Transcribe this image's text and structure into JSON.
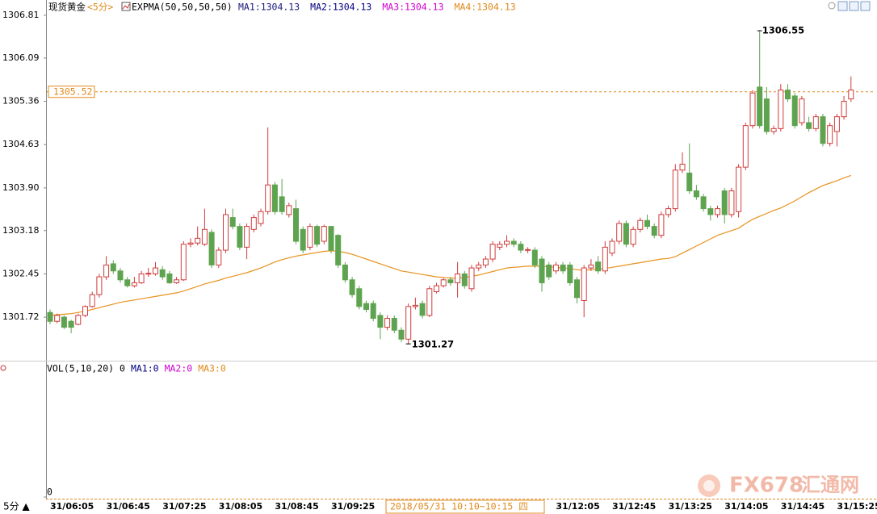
{
  "chart_data": {
    "type": "candlestick",
    "title": "现货黄金",
    "period": "<5分>",
    "indicator": "EXPMA(50,50,50,50)",
    "ma_labels": [
      {
        "text": "MA1:1304.13",
        "color": "#1a1a80"
      },
      {
        "text": "MA2:1304.13",
        "color": "#000080"
      },
      {
        "text": "MA3:1304.13",
        "color": "#d000d0"
      },
      {
        "text": "MA4:1304.13",
        "color": "#e08a1e"
      }
    ],
    "ylim": [
      1301.0,
      1307.0
    ],
    "yticks": [
      1306.81,
      1306.09,
      1305.36,
      1304.63,
      {
        "value": 1303.9,
        "label": "1303.90"
      },
      1303.18,
      1302.45,
      1301.72
    ],
    "up_color": "#d03c3c",
    "down_color": "#5ea34f",
    "categories": [
      "31/06:05",
      null,
      null,
      null,
      null,
      null,
      null,
      null,
      "31/06:45",
      null,
      null,
      null,
      null,
      null,
      null,
      null,
      "31/07:25",
      null,
      null,
      null,
      null,
      null,
      null,
      null,
      "31/08:05",
      null,
      null,
      null,
      null,
      null,
      null,
      null,
      "31/08:45",
      null,
      null,
      null,
      null,
      null,
      null,
      null,
      "31/09:25",
      null,
      null,
      null,
      null,
      null,
      null,
      null,
      null,
      null,
      null,
      null,
      null,
      null,
      null,
      null,
      null,
      null,
      null,
      null,
      null,
      null,
      null,
      null,
      null,
      null,
      null,
      null,
      null,
      null,
      null,
      null,
      "31/12:05",
      null,
      null,
      null,
      null,
      null,
      null,
      null,
      "31/12:45",
      null,
      null,
      null,
      null,
      null,
      null,
      null,
      "31/13:25",
      null,
      null,
      null,
      null,
      null,
      null,
      null,
      "31/14:05",
      null,
      null,
      null,
      null,
      null,
      null,
      null,
      "31/14:45",
      null,
      null,
      null,
      null,
      null,
      null,
      null,
      "31/15:25",
      null,
      null
    ],
    "open": [
      1301.8,
      1301.65,
      1301.72,
      1301.65,
      1301.6,
      1301.75,
      1301.9,
      1302.1,
      1302.4,
      1302.62,
      1302.5,
      1302.35,
      1302.25,
      1302.3,
      1302.45,
      1302.45,
      1302.52,
      1302.45,
      1302.3,
      1302.35,
      1302.95,
      1302.97,
      1302.95,
      1303.15,
      1302.6,
      1302.85,
      1303.4,
      1303.25,
      1302.9,
      1303.2,
      1303.3,
      1303.5,
      1303.95,
      1303.75,
      1303.45,
      1303.55,
      1303.2,
      1302.9,
      1303.25,
      1303.0,
      1303.25,
      1303.1,
      1302.6,
      1302.35,
      1302.2,
      1301.95,
      1301.95,
      1301.75,
      1301.55,
      1301.7,
      1301.5,
      1301.35,
      1301.9,
      1301.95,
      1301.75,
      1302.15,
      1302.25,
      1302.35,
      1302.3,
      1302.45,
      1302.2,
      1302.55,
      1302.6,
      1302.7,
      1302.9,
      1302.95,
      1303.0,
      1302.95,
      1302.85,
      1302.85,
      1302.7,
      1302.6,
      1302.5,
      1302.6,
      1302.6,
      1302.35,
      1302.0,
      1302.55,
      1302.65,
      1302.5,
      1302.8,
      1303.0,
      1303.3,
      1302.95,
      1303.2,
      1303.35,
      1303.25,
      1303.1,
      1303.45,
      1303.55,
      1304.2,
      1304.15,
      1303.85,
      1303.75,
      1303.55,
      1303.45,
      1303.85,
      1303.45,
      1303.5,
      1304.25,
      1304.95,
      1305.6,
      1305.4,
      1304.85,
      1304.9,
      1305.55,
      1305.45,
      1305.0,
      1305.0,
      1304.9,
      1305.1,
      1304.65,
      1304.85,
      1305.1,
      1305.4
    ],
    "high": [
      1301.85,
      1301.78,
      1301.75,
      1301.68,
      1301.78,
      1301.92,
      1302.15,
      1302.45,
      1302.75,
      1302.68,
      1302.55,
      1302.4,
      1302.4,
      1302.5,
      1302.55,
      1302.65,
      1302.58,
      1302.5,
      1302.4,
      1303.0,
      1303.05,
      1303.25,
      1303.55,
      1303.2,
      1302.9,
      1303.55,
      1303.55,
      1303.3,
      1303.3,
      1303.45,
      1303.55,
      1304.92,
      1304.0,
      1304.05,
      1303.65,
      1303.7,
      1303.25,
      1303.3,
      1303.28,
      1303.28,
      1303.25,
      1303.12,
      1302.65,
      1302.4,
      1302.25,
      1302.0,
      1302.0,
      1301.8,
      1301.75,
      1301.75,
      1301.55,
      1301.95,
      1302.05,
      1302.0,
      1302.25,
      1302.3,
      1302.38,
      1302.4,
      1302.65,
      1302.5,
      1302.6,
      1302.65,
      1302.75,
      1303.0,
      1303.0,
      1303.1,
      1303.05,
      1303.0,
      1302.9,
      1302.9,
      1302.75,
      1302.65,
      1302.65,
      1302.65,
      1302.65,
      1302.4,
      1302.6,
      1302.7,
      1302.75,
      1303.0,
      1303.05,
      1303.35,
      1303.35,
      1303.25,
      1303.4,
      1303.45,
      1303.3,
      1303.5,
      1303.6,
      1304.3,
      1304.5,
      1304.65,
      1303.95,
      1303.8,
      1303.6,
      1303.6,
      1303.9,
      1303.9,
      1304.3,
      1305.0,
      1305.55,
      1306.55,
      1305.6,
      1304.95,
      1305.65,
      1305.65,
      1305.5,
      1305.45,
      1305.1,
      1305.15,
      1305.15,
      1305.0,
      1305.15,
      1305.45,
      1305.78
    ],
    "low": [
      1301.6,
      1301.62,
      1301.52,
      1301.45,
      1301.58,
      1301.72,
      1301.88,
      1302.05,
      1302.35,
      1302.45,
      1302.3,
      1302.22,
      1302.22,
      1302.28,
      1302.4,
      1302.42,
      1302.35,
      1302.28,
      1302.28,
      1302.33,
      1302.9,
      1302.93,
      1302.92,
      1302.55,
      1302.55,
      1302.8,
      1303.2,
      1302.85,
      1302.7,
      1303.15,
      1303.25,
      1303.45,
      1303.45,
      1303.45,
      1303.4,
      1302.95,
      1302.8,
      1302.85,
      1302.9,
      1302.95,
      1302.8,
      1302.55,
      1302.3,
      1302.05,
      1301.85,
      1301.8,
      1301.65,
      1301.35,
      1301.5,
      1301.45,
      1301.3,
      1301.27,
      1301.85,
      1301.7,
      1301.72,
      1302.12,
      1302.22,
      1302.25,
      1302.05,
      1302.2,
      1302.15,
      1302.5,
      1302.55,
      1302.65,
      1302.85,
      1302.9,
      1302.9,
      1302.8,
      1302.8,
      1302.55,
      1302.15,
      1302.35,
      1302.45,
      1302.45,
      1302.25,
      1301.95,
      1301.72,
      1302.5,
      1302.45,
      1302.45,
      1302.75,
      1302.95,
      1302.9,
      1302.9,
      1303.15,
      1303.2,
      1303.05,
      1303.05,
      1303.4,
      1303.5,
      1304.15,
      1303.8,
      1303.7,
      1303.5,
      1303.35,
      1303.4,
      1303.3,
      1303.4,
      1303.4,
      1304.2,
      1304.9,
      1304.9,
      1304.8,
      1304.8,
      1304.85,
      1305.35,
      1304.9,
      1304.95,
      1304.85,
      1304.85,
      1304.6,
      1304.6,
      1304.6,
      1305.05,
      1305.35
    ],
    "close": [
      1301.65,
      1301.75,
      1301.55,
      1301.55,
      1301.75,
      1301.9,
      1302.1,
      1302.4,
      1302.6,
      1302.5,
      1302.35,
      1302.25,
      1302.3,
      1302.45,
      1302.46,
      1302.55,
      1302.4,
      1302.3,
      1302.35,
      1302.95,
      1302.97,
      1303.05,
      1303.2,
      1302.6,
      1302.85,
      1303.45,
      1303.25,
      1302.9,
      1303.25,
      1303.4,
      1303.5,
      1303.95,
      1303.5,
      1303.5,
      1303.6,
      1303.0,
      1302.85,
      1303.25,
      1302.95,
      1303.25,
      1302.85,
      1302.6,
      1302.35,
      1302.1,
      1301.9,
      1301.85,
      1301.7,
      1301.55,
      1301.7,
      1301.5,
      1301.35,
      1301.9,
      1301.92,
      1301.75,
      1302.2,
      1302.25,
      1302.35,
      1302.3,
      1302.45,
      1302.25,
      1302.55,
      1302.6,
      1302.7,
      1302.95,
      1302.95,
      1303.0,
      1302.95,
      1302.85,
      1302.86,
      1302.6,
      1302.3,
      1302.4,
      1302.6,
      1302.5,
      1302.3,
      1302.05,
      1302.55,
      1302.6,
      1302.5,
      1302.9,
      1303.0,
      1303.3,
      1302.95,
      1303.2,
      1303.35,
      1303.25,
      1303.1,
      1303.45,
      1303.55,
      1304.2,
      1304.3,
      1303.85,
      1303.75,
      1303.55,
      1303.45,
      1303.55,
      1303.45,
      1303.85,
      1304.25,
      1304.95,
      1305.5,
      1304.95,
      1304.85,
      1304.9,
      1305.55,
      1305.4,
      1304.95,
      1305.4,
      1304.9,
      1305.1,
      1304.65,
      1304.95,
      1305.1,
      1305.36,
      1305.55
    ],
    "ema": {
      "color": "#e8921e",
      "values": [
        1301.75,
        1301.76,
        1301.77,
        1301.78,
        1301.8,
        1301.82,
        1301.85,
        1301.88,
        1301.91,
        1301.94,
        1301.97,
        1301.99,
        1302.01,
        1302.03,
        1302.05,
        1302.07,
        1302.09,
        1302.11,
        1302.13,
        1302.16,
        1302.2,
        1302.24,
        1302.28,
        1302.31,
        1302.34,
        1302.38,
        1302.41,
        1302.44,
        1302.47,
        1302.51,
        1302.55,
        1302.6,
        1302.65,
        1302.69,
        1302.72,
        1302.75,
        1302.77,
        1302.79,
        1302.81,
        1302.83,
        1302.84,
        1302.83,
        1302.81,
        1302.78,
        1302.74,
        1302.7,
        1302.66,
        1302.62,
        1302.58,
        1302.54,
        1302.5,
        1302.48,
        1302.46,
        1302.44,
        1302.42,
        1302.4,
        1302.39,
        1302.38,
        1302.38,
        1302.39,
        1302.41,
        1302.43,
        1302.46,
        1302.49,
        1302.52,
        1302.55,
        1302.56,
        1302.57,
        1302.58,
        1302.58,
        1302.58,
        1302.57,
        1302.56,
        1302.55,
        1302.54,
        1302.52,
        1302.51,
        1302.52,
        1302.53,
        1302.54,
        1302.56,
        1302.58,
        1302.6,
        1302.62,
        1302.64,
        1302.66,
        1302.68,
        1302.7,
        1302.71,
        1302.74,
        1302.8,
        1302.86,
        1302.92,
        1302.98,
        1303.04,
        1303.1,
        1303.14,
        1303.18,
        1303.22,
        1303.3,
        1303.37,
        1303.42,
        1303.47,
        1303.52,
        1303.56,
        1303.62,
        1303.68,
        1303.75,
        1303.82,
        1303.88,
        1303.94,
        1303.98,
        1304.02,
        1304.07,
        1304.11
      ]
    },
    "last_price": 1305.52,
    "volume": {
      "legend": [
        {
          "text": "VOL(5,10,20) 0",
          "color": "#000000"
        },
        {
          "text": "MA1:0",
          "color": "#000080"
        },
        {
          "text": "MA2:0",
          "color": "#d000d0"
        },
        {
          "text": "MA3:0",
          "color": "#e08a1e"
        }
      ],
      "yticks": [
        0
      ]
    },
    "period_button": "5分 ▲",
    "crosshair_label": "2018/05/31 10:10~10:15 四",
    "watermark": [
      "FX678",
      "汇通网"
    ]
  }
}
